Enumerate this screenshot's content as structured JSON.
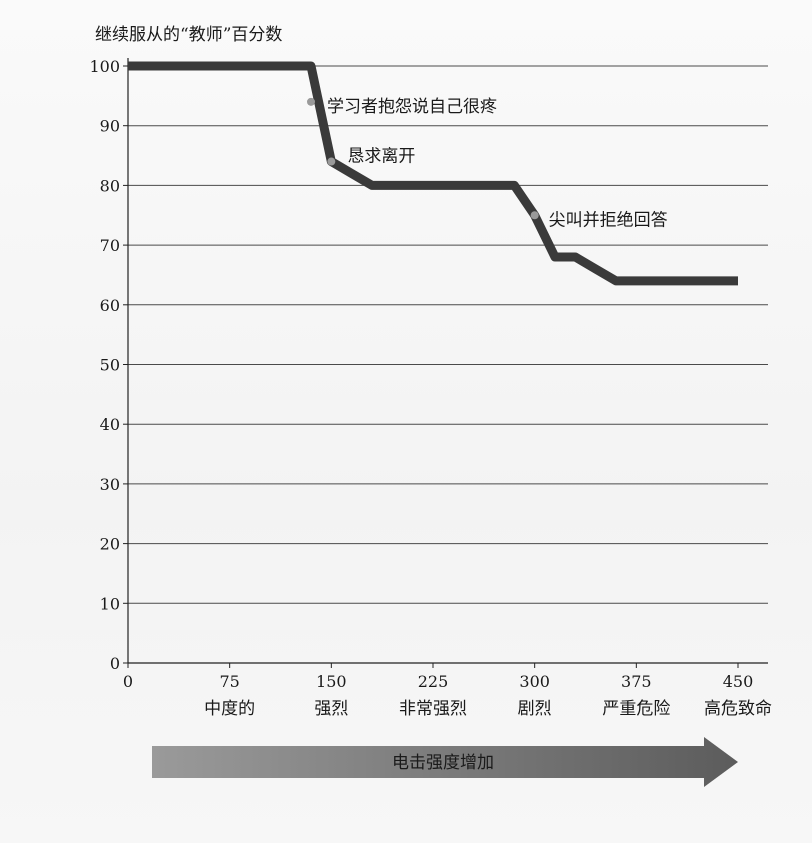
{
  "chart_data": {
    "type": "line",
    "ylabel": "继续服从的“教师”百分数",
    "xlabel": "",
    "ylim": [
      0,
      100
    ],
    "xlim": [
      0,
      450
    ],
    "y_ticks": [
      0,
      10,
      20,
      30,
      40,
      50,
      60,
      70,
      80,
      90,
      100
    ],
    "x_ticks": [
      0,
      75,
      150,
      225,
      300,
      375,
      450
    ],
    "x_tick_labels": [
      "0",
      "75",
      "150",
      "225",
      "300",
      "375",
      "450"
    ],
    "x_category_labels": [
      {
        "x": 75,
        "label": "中度的"
      },
      {
        "x": 150,
        "label": "强烈"
      },
      {
        "x": 225,
        "label": "非常强烈"
      },
      {
        "x": 300,
        "label": "剧烈"
      },
      {
        "x": 375,
        "label": "严重危险"
      },
      {
        "x": 450,
        "label": "高危致命"
      }
    ],
    "grid": "horizontal",
    "series": [
      {
        "x": [
          0,
          120,
          135,
          150,
          165,
          180,
          225,
          270,
          285,
          300,
          315,
          330,
          345,
          360,
          375,
          405,
          420,
          435,
          450
        ],
        "values": [
          100,
          100,
          100,
          84,
          82,
          80,
          80,
          80,
          80,
          75,
          68,
          68,
          66,
          64,
          64,
          64,
          64,
          64,
          64
        ]
      }
    ],
    "line_color": "#3a3a3a",
    "annotations": [
      {
        "text": "学习者抱怨说自己很疼",
        "x": 135,
        "y": 94
      },
      {
        "text": "恳求离开",
        "x": 150,
        "y": 84
      },
      {
        "text": "尖叫并拒绝回答",
        "x": 300,
        "y": 75
      }
    ],
    "arrow_label": "电击强度增加"
  }
}
